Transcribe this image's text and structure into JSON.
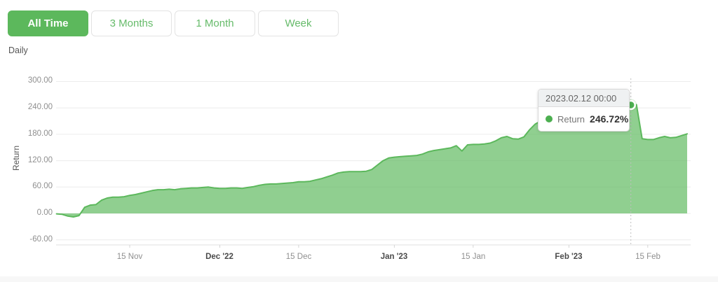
{
  "controls": {
    "buttons": [
      {
        "label": "All Time",
        "active": true
      },
      {
        "label": "3 Months",
        "active": false
      },
      {
        "label": "1 Month",
        "active": false
      },
      {
        "label": "Week",
        "active": false
      }
    ],
    "frequency_label": "Daily"
  },
  "tooltip": {
    "date": "2023.02.12 00:00",
    "series": "Return",
    "value": "246.72%"
  },
  "colors": {
    "accent_green": "#5cb85c",
    "button_text_green": "#66bb6a",
    "line": "#5cb85c",
    "area_fill": "rgba(92,184,92,0.68)",
    "marker": "#4caf50",
    "grid_line": "#ececec",
    "axis_line": "#e2e2e2",
    "tick_mark": "#d5d5d5",
    "dashed_line": "#bfbfbf"
  },
  "chart_data": {
    "type": "area",
    "title": "",
    "xlabel": "",
    "ylabel": "Return",
    "ylim": [
      -60,
      300
    ],
    "grid": true,
    "legend_position": "none",
    "y_ticks": [
      {
        "value": 300,
        "label": "300.00"
      },
      {
        "value": 240,
        "label": "240.00"
      },
      {
        "value": 180,
        "label": "180.00"
      },
      {
        "value": 120,
        "label": "120.00"
      },
      {
        "value": 60,
        "label": "60.00"
      },
      {
        "value": 0,
        "label": "0.00"
      },
      {
        "value": -60,
        "label": "-60.00"
      }
    ],
    "x_ticks": [
      {
        "date": "2022-11-15",
        "label": "15 Nov",
        "bold": false
      },
      {
        "date": "2022-12-01",
        "label": "Dec '22",
        "bold": true
      },
      {
        "date": "2022-12-15",
        "label": "15 Dec",
        "bold": false
      },
      {
        "date": "2023-01-01",
        "label": "Jan '23",
        "bold": true
      },
      {
        "date": "2023-01-15",
        "label": "15 Jan",
        "bold": false
      },
      {
        "date": "2023-02-01",
        "label": "Feb '23",
        "bold": true
      },
      {
        "date": "2023-02-15",
        "label": "15 Feb",
        "bold": false
      }
    ],
    "highlight": {
      "date": "2023-02-12",
      "value": 246.72,
      "series": "Return",
      "display": "246.72%"
    },
    "points": [
      [
        "2022-11-02",
        -1
      ],
      [
        "2022-11-03",
        -2
      ],
      [
        "2022-11-04",
        -6
      ],
      [
        "2022-11-05",
        -8
      ],
      [
        "2022-11-06",
        -5
      ],
      [
        "2022-11-07",
        14
      ],
      [
        "2022-11-08",
        19
      ],
      [
        "2022-11-09",
        20
      ],
      [
        "2022-11-10",
        30
      ],
      [
        "2022-11-11",
        35
      ],
      [
        "2022-11-12",
        37
      ],
      [
        "2022-11-13",
        37
      ],
      [
        "2022-11-14",
        38
      ],
      [
        "2022-11-15",
        41
      ],
      [
        "2022-11-16",
        43
      ],
      [
        "2022-11-17",
        46
      ],
      [
        "2022-11-18",
        49
      ],
      [
        "2022-11-19",
        52
      ],
      [
        "2022-11-20",
        54
      ],
      [
        "2022-11-21",
        54
      ],
      [
        "2022-11-22",
        55
      ],
      [
        "2022-11-23",
        54
      ],
      [
        "2022-11-24",
        56
      ],
      [
        "2022-11-25",
        57
      ],
      [
        "2022-11-26",
        58
      ],
      [
        "2022-11-27",
        58
      ],
      [
        "2022-11-28",
        59
      ],
      [
        "2022-11-29",
        60
      ],
      [
        "2022-11-30",
        58
      ],
      [
        "2022-12-01",
        57
      ],
      [
        "2022-12-02",
        57
      ],
      [
        "2022-12-03",
        58
      ],
      [
        "2022-12-04",
        58
      ],
      [
        "2022-12-05",
        57
      ],
      [
        "2022-12-06",
        59
      ],
      [
        "2022-12-07",
        61
      ],
      [
        "2022-12-08",
        64
      ],
      [
        "2022-12-09",
        66
      ],
      [
        "2022-12-10",
        67
      ],
      [
        "2022-12-11",
        67
      ],
      [
        "2022-12-12",
        68
      ],
      [
        "2022-12-13",
        69
      ],
      [
        "2022-12-14",
        70
      ],
      [
        "2022-12-15",
        72
      ],
      [
        "2022-12-16",
        72
      ],
      [
        "2022-12-17",
        73
      ],
      [
        "2022-12-18",
        76
      ],
      [
        "2022-12-19",
        79
      ],
      [
        "2022-12-20",
        83
      ],
      [
        "2022-12-21",
        87
      ],
      [
        "2022-12-22",
        92
      ],
      [
        "2022-12-23",
        94
      ],
      [
        "2022-12-24",
        95
      ],
      [
        "2022-12-25",
        95
      ],
      [
        "2022-12-26",
        95
      ],
      [
        "2022-12-27",
        96
      ],
      [
        "2022-12-28",
        100
      ],
      [
        "2022-12-29",
        110
      ],
      [
        "2022-12-30",
        120
      ],
      [
        "2022-12-31",
        126
      ],
      [
        "2023-01-01",
        128
      ],
      [
        "2023-01-02",
        129
      ],
      [
        "2023-01-03",
        130
      ],
      [
        "2023-01-04",
        131
      ],
      [
        "2023-01-05",
        132
      ],
      [
        "2023-01-06",
        135
      ],
      [
        "2023-01-07",
        140
      ],
      [
        "2023-01-08",
        143
      ],
      [
        "2023-01-09",
        145
      ],
      [
        "2023-01-10",
        147
      ],
      [
        "2023-01-11",
        149
      ],
      [
        "2023-01-12",
        154
      ],
      [
        "2023-01-13",
        142
      ],
      [
        "2023-01-14",
        156
      ],
      [
        "2023-01-15",
        157
      ],
      [
        "2023-01-16",
        157
      ],
      [
        "2023-01-17",
        158
      ],
      [
        "2023-01-18",
        160
      ],
      [
        "2023-01-19",
        165
      ],
      [
        "2023-01-20",
        172
      ],
      [
        "2023-01-21",
        175
      ],
      [
        "2023-01-22",
        170
      ],
      [
        "2023-01-23",
        169
      ],
      [
        "2023-01-24",
        174
      ],
      [
        "2023-01-25",
        190
      ],
      [
        "2023-01-26",
        203
      ],
      [
        "2023-01-27",
        210
      ],
      [
        "2023-01-28",
        214
      ],
      [
        "2023-01-29",
        217
      ],
      [
        "2023-01-30",
        220
      ],
      [
        "2023-01-31",
        223
      ],
      [
        "2023-02-01",
        226
      ],
      [
        "2023-02-02",
        228
      ],
      [
        "2023-02-03",
        230
      ],
      [
        "2023-02-04",
        231
      ],
      [
        "2023-02-05",
        233
      ],
      [
        "2023-02-06",
        235
      ],
      [
        "2023-02-07",
        237
      ],
      [
        "2023-02-08",
        239
      ],
      [
        "2023-02-09",
        241
      ],
      [
        "2023-02-10",
        243
      ],
      [
        "2023-02-11",
        245
      ],
      [
        "2023-02-12",
        246.72
      ],
      [
        "2023-02-13",
        247.5
      ],
      [
        "2023-02-14",
        170
      ],
      [
        "2023-02-15",
        168
      ],
      [
        "2023-02-16",
        168
      ],
      [
        "2023-02-17",
        172
      ],
      [
        "2023-02-18",
        175
      ],
      [
        "2023-02-19",
        172
      ],
      [
        "2023-02-20",
        173
      ],
      [
        "2023-02-21",
        177
      ],
      [
        "2023-02-22",
        181
      ]
    ]
  }
}
